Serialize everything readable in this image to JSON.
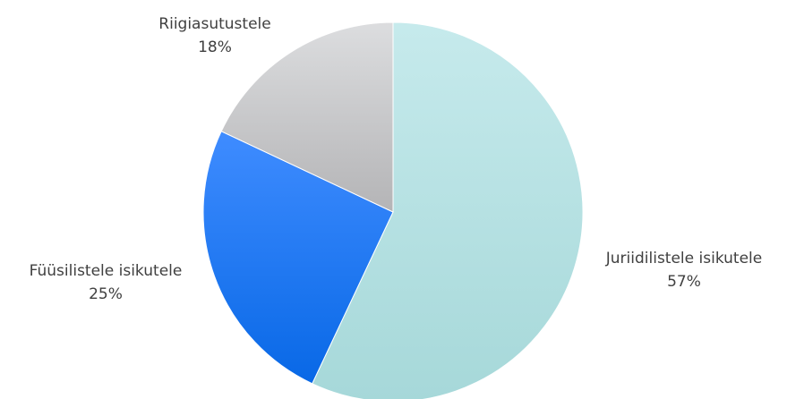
{
  "chart_data": {
    "type": "pie",
    "slices": [
      {
        "label": "Juriidilistele isikutele",
        "value": 57,
        "value_label": "57%",
        "color_top": "#c6eaec",
        "color_bottom": "#a6d8d9"
      },
      {
        "label": "Füüsilistele isikutele",
        "value": 25,
        "value_label": "25%",
        "color_top": "#3f8cff",
        "color_bottom": "#0868e6"
      },
      {
        "label": "Riigiasutustele",
        "value": 18,
        "value_label": "18%",
        "color_top": "#dcdddf",
        "color_bottom": "#b4b4b6"
      }
    ],
    "start_angle_deg": 0,
    "direction": "clockwise",
    "legend": "none",
    "label_color": "#404040"
  }
}
